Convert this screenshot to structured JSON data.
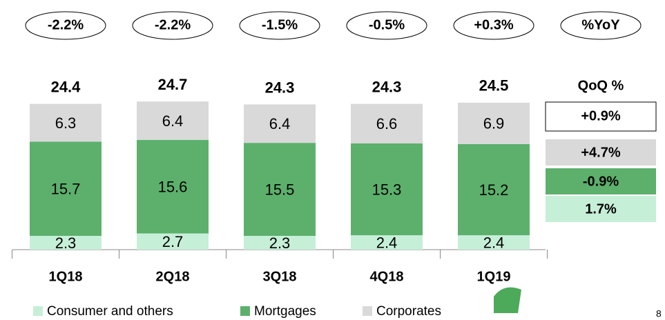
{
  "chart_data": {
    "type": "stacked_bar",
    "categories": [
      "1Q18",
      "2Q18",
      "3Q18",
      "4Q18",
      "1Q19"
    ],
    "series": [
      {
        "name": "Consumer and others",
        "color": "#c6efd8",
        "values": [
          2.3,
          2.7,
          2.3,
          2.4,
          2.4
        ]
      },
      {
        "name": "Mortgages",
        "color": "#5cb06c",
        "values": [
          15.7,
          15.6,
          15.5,
          15.3,
          15.2
        ]
      },
      {
        "name": "Corporates",
        "color": "#d9d9d9",
        "values": [
          6.3,
          6.4,
          6.4,
          6.6,
          6.9
        ]
      }
    ],
    "totals": [
      24.4,
      24.7,
      24.3,
      24.3,
      24.5
    ],
    "yoy_header": "%YoY",
    "yoy_labels": [
      "-2.2%",
      "-2.2%",
      "-1.5%",
      "-0.5%",
      "+0.3%"
    ],
    "qoq_header": "QoQ %",
    "qoq_total": "+0.9%",
    "qoq_labels": [
      "1.7%",
      "-0.9%",
      "+4.7%"
    ],
    "page_number": "8"
  }
}
